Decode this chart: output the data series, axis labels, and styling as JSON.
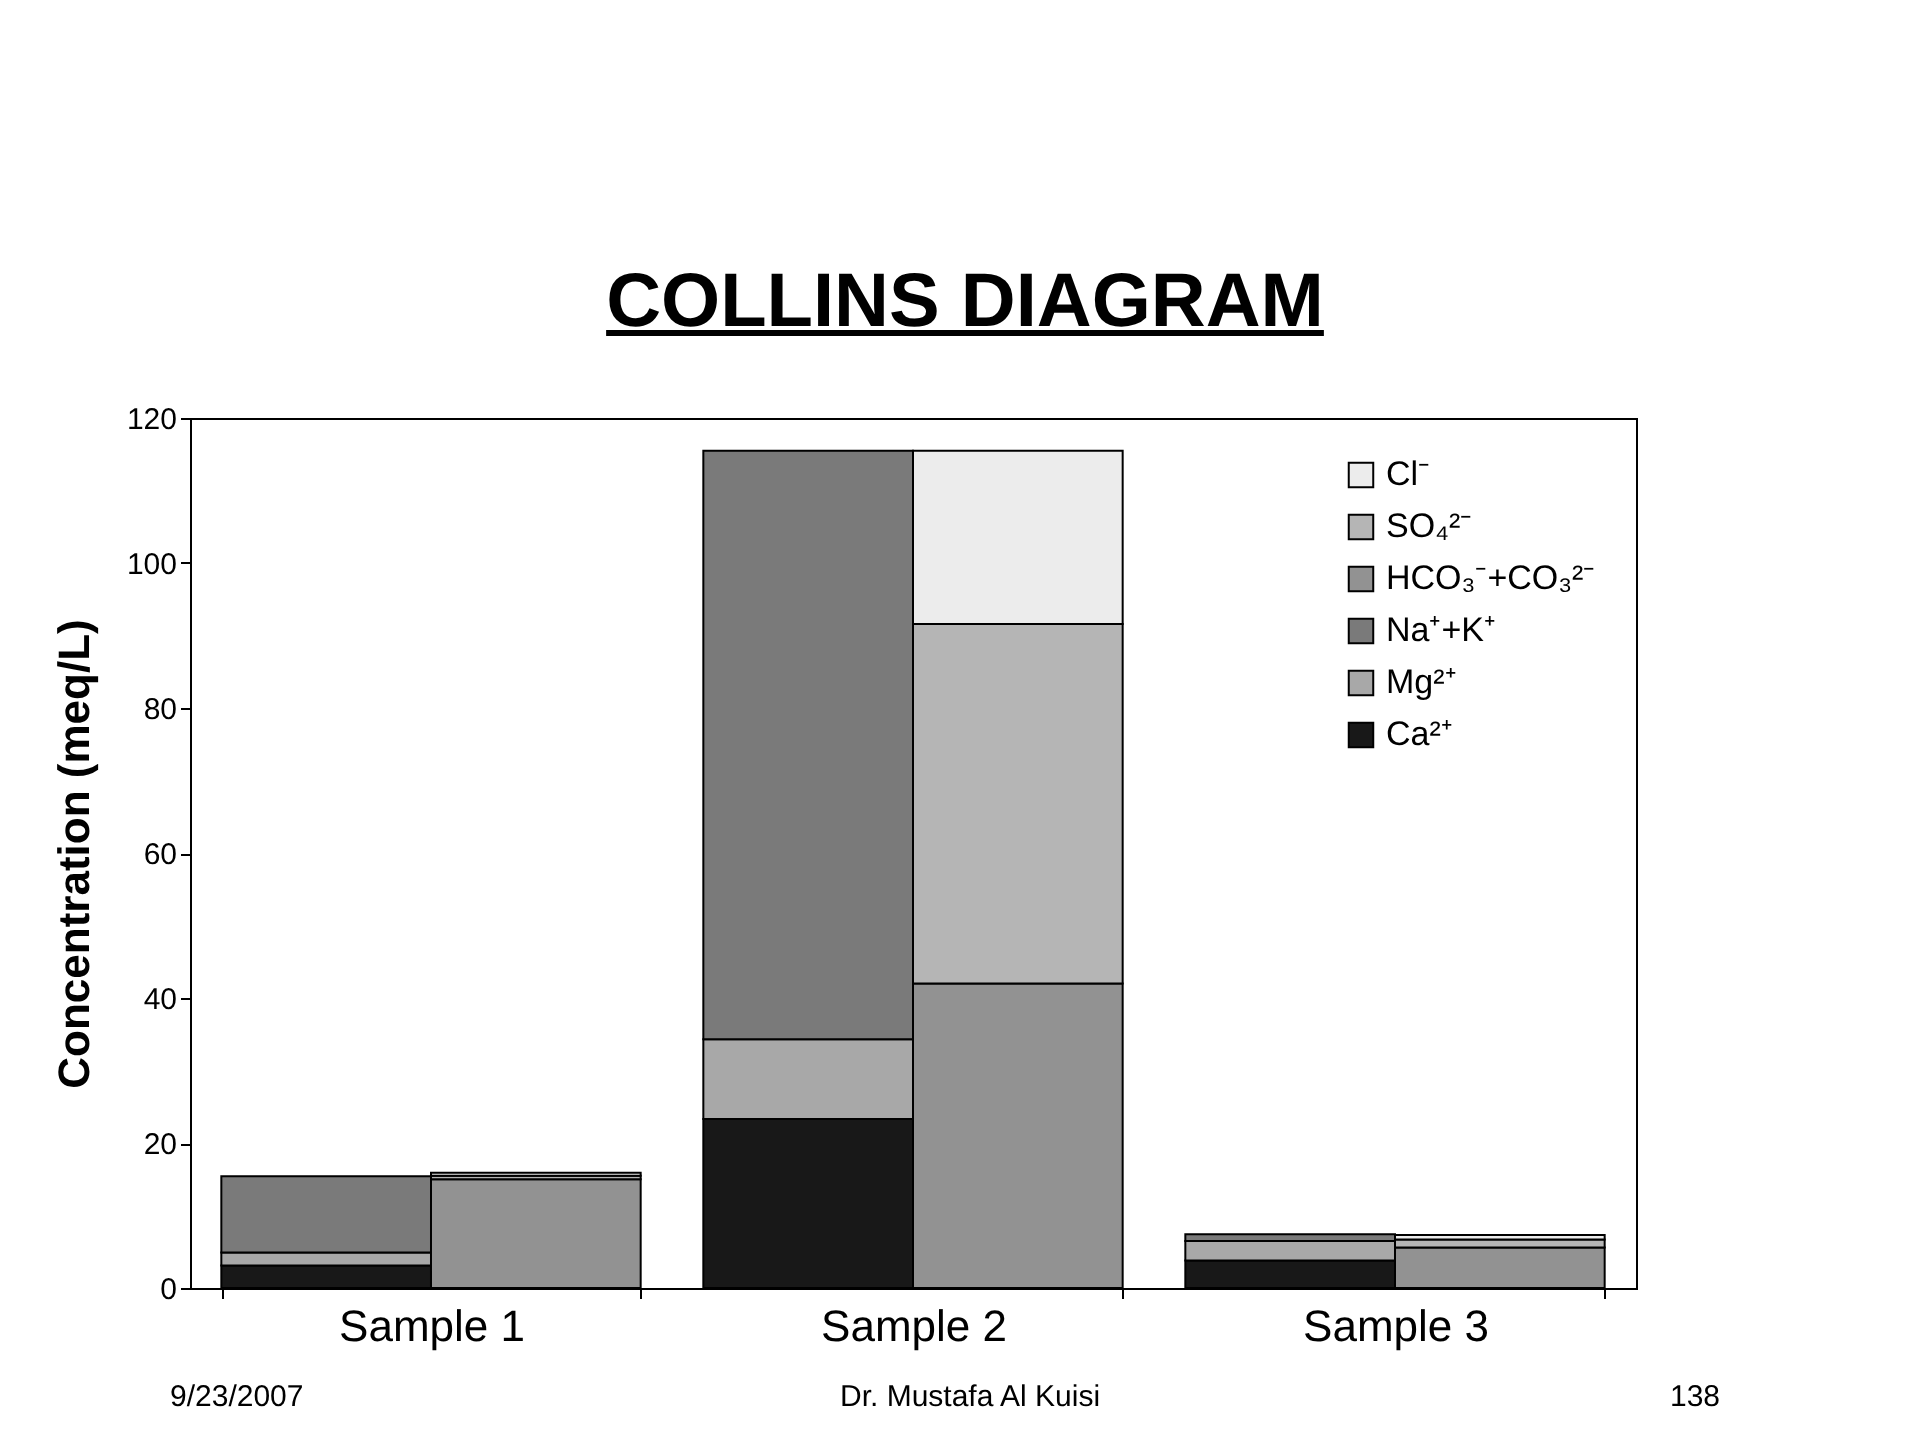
{
  "chart_data": {
    "type": "bar",
    "title": "COLLINS DIAGRAM",
    "ylabel": "Concentration (meq/L)",
    "categories": [
      "Sample 1",
      "Sample 2",
      "Sample 3"
    ],
    "series": [
      {
        "name": "Ca²⁺",
        "color": "#181818",
        "values": [
          3.1,
          23.3,
          3.8
        ],
        "base": [
          0,
          0,
          0
        ]
      },
      {
        "name": "Mg²⁺",
        "color": "#a8a8a8",
        "values": [
          1.8,
          11.0,
          2.7
        ],
        "base": [
          3.1,
          23.3,
          3.8
        ]
      },
      {
        "name": "Na⁺+K⁺",
        "color": "#7a7a7a",
        "values": [
          10.5,
          81.2,
          0.9
        ],
        "base": [
          4.9,
          34.3,
          6.5
        ]
      },
      {
        "name": "HCO₃⁻+CO₃²⁻",
        "color": "#929292",
        "values": [
          15.0,
          42.0,
          5.6
        ],
        "base": [
          0,
          0,
          0
        ]
      },
      {
        "name": "SO₄²⁻",
        "color": "#b5b5b5",
        "values": [
          0.5,
          49.6,
          1.1
        ],
        "base": [
          15.0,
          42.0,
          5.6
        ]
      },
      {
        "name": "Cl⁻",
        "color": "#ececec",
        "values": [
          0.4,
          23.9,
          0.6
        ],
        "base": [
          15.5,
          91.6,
          6.7
        ]
      }
    ],
    "ylim": [
      0,
      120
    ],
    "yticks": [
      0,
      20,
      40,
      60,
      80,
      100,
      120
    ],
    "grid": false,
    "legend": "top right",
    "annotations": [
      "9/23/2007",
      "Dr. Mustafa Al Kuisi",
      "138"
    ]
  }
}
